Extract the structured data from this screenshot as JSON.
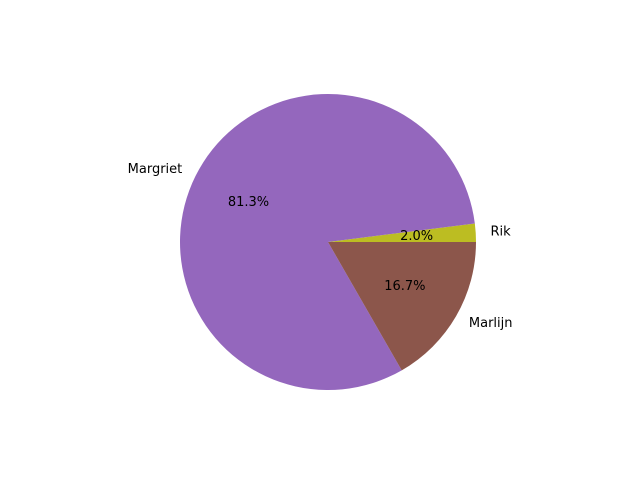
{
  "chart_data": {
    "type": "pie",
    "title": "",
    "slices": [
      {
        "label": "Rik",
        "value": 2.0,
        "pct_label": "2.0%",
        "color": "#bcbd22"
      },
      {
        "label": "Margriet",
        "value": 81.3,
        "pct_label": "81.3%",
        "color": "#9467bd"
      },
      {
        "label": "Marlijn",
        "value": 16.7,
        "pct_label": "16.7%",
        "color": "#8c564b"
      }
    ],
    "start_angle_deg": 0,
    "direction": "counterclockwise"
  }
}
